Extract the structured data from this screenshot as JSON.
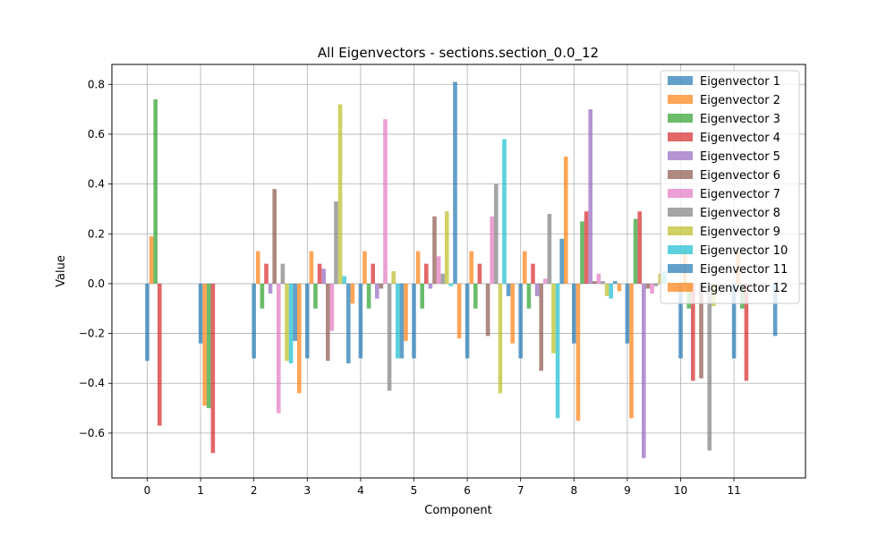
{
  "chart_data": {
    "type": "bar",
    "title": "All Eigenvectors - sections.section_0.0_12",
    "xlabel": "Component",
    "ylabel": "Value",
    "categories": [
      "0",
      "1",
      "2",
      "3",
      "4",
      "5",
      "6",
      "7",
      "8",
      "9",
      "10",
      "11"
    ],
    "ylim": [
      -0.78,
      0.88
    ],
    "yticks": [
      -0.6,
      -0.4,
      -0.2,
      0.0,
      0.2,
      0.4,
      0.6,
      0.8
    ],
    "ytick_labels": [
      "−0.6",
      "−0.4",
      "−0.2",
      "0.0",
      "0.2",
      "0.4",
      "0.6",
      "0.8"
    ],
    "grid": true,
    "legend_position": "top-right",
    "series": [
      {
        "name": "Eigenvector 1",
        "color": "#1f77b4",
        "values": [
          -0.31,
          -0.24,
          -0.3,
          -0.3,
          -0.3,
          -0.3,
          -0.3,
          -0.3,
          -0.24,
          -0.24,
          -0.3,
          -0.3
        ]
      },
      {
        "name": "Eigenvector 2",
        "color": "#ff7f0e",
        "values": [
          0.19,
          -0.49,
          0.13,
          0.13,
          0.13,
          0.13,
          0.13,
          0.13,
          -0.55,
          -0.54,
          0.13,
          0.13
        ]
      },
      {
        "name": "Eigenvector 3",
        "color": "#2ca02c",
        "values": [
          0.74,
          -0.5,
          -0.1,
          -0.1,
          -0.1,
          -0.1,
          -0.1,
          -0.1,
          0.25,
          0.26,
          -0.1,
          -0.1
        ]
      },
      {
        "name": "Eigenvector 4",
        "color": "#d62728",
        "values": [
          -0.57,
          -0.68,
          0.08,
          0.08,
          0.08,
          0.08,
          0.08,
          0.08,
          0.29,
          0.29,
          -0.39,
          -0.39
        ]
      },
      {
        "name": "Eigenvector 5",
        "color": "#9467bd",
        "values": [
          0.0,
          0.0,
          -0.04,
          0.06,
          -0.06,
          -0.02,
          0.0,
          -0.05,
          0.7,
          -0.7,
          0.0,
          0.0
        ]
      },
      {
        "name": "Eigenvector 6",
        "color": "#8c564b",
        "values": [
          0.0,
          0.0,
          0.38,
          -0.31,
          -0.02,
          0.27,
          -0.21,
          -0.35,
          0.01,
          -0.02,
          -0.38,
          0.0
        ]
      },
      {
        "name": "Eigenvector 7",
        "color": "#e377c2",
        "values": [
          0.0,
          0.0,
          -0.52,
          -0.19,
          0.66,
          0.11,
          0.27,
          0.02,
          0.04,
          -0.04,
          0.0,
          0.0
        ]
      },
      {
        "name": "Eigenvector 8",
        "color": "#7f7f7f",
        "values": [
          0.0,
          0.0,
          0.08,
          0.33,
          -0.43,
          0.04,
          0.4,
          0.28,
          0.01,
          -0.01,
          -0.67,
          0.0
        ]
      },
      {
        "name": "Eigenvector 9",
        "color": "#bcbd22",
        "values": [
          0.0,
          0.0,
          -0.31,
          0.72,
          0.05,
          0.29,
          -0.44,
          -0.28,
          -0.05,
          0.04,
          -0.09,
          0.0
        ]
      },
      {
        "name": "Eigenvector 10",
        "color": "#17becf",
        "values": [
          0.0,
          0.0,
          -0.32,
          0.03,
          -0.3,
          -0.01,
          0.58,
          -0.54,
          -0.06,
          0.05,
          0.0,
          0.0
        ]
      },
      {
        "name": "Eigenvector 11",
        "color": "#1f77b4",
        "values": [
          0.0,
          0.0,
          -0.23,
          -0.32,
          -0.3,
          0.81,
          -0.05,
          0.18,
          0.01,
          0.0,
          0.0,
          -0.21
        ]
      },
      {
        "name": "Eigenvector 12",
        "color": "#ff7f0e",
        "values": [
          0.0,
          0.0,
          -0.44,
          -0.08,
          -0.23,
          -0.22,
          -0.24,
          0.51,
          -0.03,
          0.0,
          0.0,
          0.0
        ]
      }
    ]
  }
}
